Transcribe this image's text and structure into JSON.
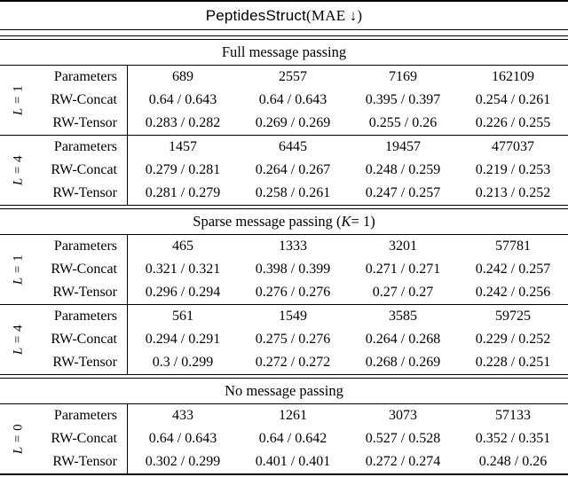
{
  "title": {
    "dataset": "PeptidesStruct",
    "metric": " (MAE ↓)"
  },
  "sections": [
    {
      "header": {
        "pre": "Full message passing",
        "var": "",
        "post": ""
      },
      "blocks": [
        {
          "group": {
            "var": "L",
            "rest": " = 1"
          },
          "rows": [
            {
              "label": "Parameters",
              "values": [
                "689",
                "2557",
                "7169",
                "162109"
              ]
            },
            {
              "label": "RW-Concat",
              "values": [
                "0.64 / 0.643",
                "0.64 / 0.643",
                "0.395 / 0.397",
                "0.254 / 0.261"
              ]
            },
            {
              "label": "RW-Tensor",
              "values": [
                "0.283 / 0.282",
                "0.269 / 0.269",
                "0.255 / 0.26",
                "0.226 / 0.255"
              ]
            }
          ]
        },
        {
          "group": {
            "var": "L",
            "rest": " = 4"
          },
          "rows": [
            {
              "label": "Parameters",
              "values": [
                "1457",
                "6445",
                "19457",
                "477037"
              ]
            },
            {
              "label": "RW-Concat",
              "values": [
                "0.279 / 0.281",
                "0.264 / 0.267",
                "0.248 / 0.259",
                "0.219 / 0.253"
              ]
            },
            {
              "label": "RW-Tensor",
              "values": [
                "0.281 / 0.279",
                "0.258 / 0.261",
                "0.247 / 0.257",
                "0.213 / 0.252"
              ]
            }
          ]
        }
      ]
    },
    {
      "header": {
        "pre": "Sparse message passing (",
        "var": "K",
        "post": " = 1)"
      },
      "blocks": [
        {
          "group": {
            "var": "L",
            "rest": " = 1"
          },
          "rows": [
            {
              "label": "Parameters",
              "values": [
                "465",
                "1333",
                "3201",
                "57781"
              ]
            },
            {
              "label": "RW-Concat",
              "values": [
                "0.321 / 0.321",
                "0.398 / 0.399",
                "0.271 / 0.271",
                "0.242 / 0.257"
              ]
            },
            {
              "label": "RW-Tensor",
              "values": [
                "0.296 / 0.294",
                "0.276 / 0.276",
                "0.27 / 0.27",
                "0.242 / 0.256"
              ]
            }
          ]
        },
        {
          "group": {
            "var": "L",
            "rest": " = 4"
          },
          "rows": [
            {
              "label": "Parameters",
              "values": [
                "561",
                "1549",
                "3585",
                "59725"
              ]
            },
            {
              "label": "RW-Concat",
              "values": [
                "0.294 / 0.291",
                "0.275 / 0.276",
                "0.264 / 0.268",
                "0.229 / 0.252"
              ]
            },
            {
              "label": "RW-Tensor",
              "values": [
                "0.3 / 0.299",
                "0.272 / 0.272",
                "0.268 / 0.269",
                "0.228 / 0.251"
              ]
            }
          ]
        }
      ]
    },
    {
      "header": {
        "pre": "No message passing",
        "var": "",
        "post": ""
      },
      "blocks": [
        {
          "group": {
            "var": "L",
            "rest": " = 0"
          },
          "rows": [
            {
              "label": "Parameters",
              "values": [
                "433",
                "1261",
                "3073",
                "57133"
              ]
            },
            {
              "label": "RW-Concat",
              "values": [
                "0.64 / 0.643",
                "0.64 / 0.642",
                "0.527 / 0.528",
                "0.352 / 0.351"
              ]
            },
            {
              "label": "RW-Tensor",
              "values": [
                "0.302 / 0.299",
                "0.401 / 0.401",
                "0.272 / 0.274",
                "0.248 / 0.26"
              ]
            }
          ]
        }
      ]
    }
  ]
}
